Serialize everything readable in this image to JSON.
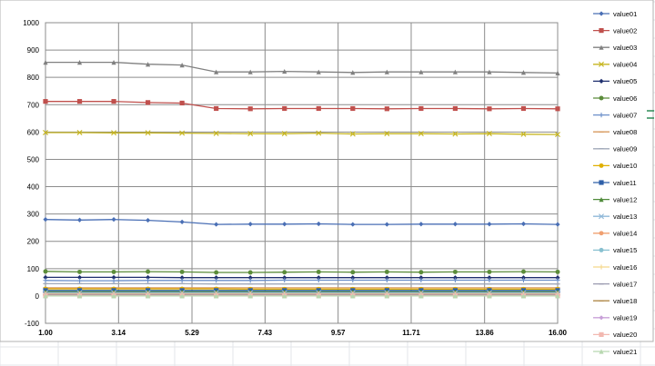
{
  "chart_data": {
    "type": "line",
    "title": "",
    "xlabel": "",
    "ylabel": "",
    "ylim": [
      -100,
      1000
    ],
    "yticks": [
      "-100",
      "0",
      "100",
      "200",
      "300",
      "400",
      "500",
      "600",
      "700",
      "800",
      "900",
      "1000"
    ],
    "xlim": [
      1.0,
      16.0
    ],
    "xticks": [
      "1.00",
      "3.14",
      "5.29",
      "7.43",
      "9.57",
      "11.71",
      "13.86",
      "16.00"
    ],
    "grid": true,
    "legend_position": "right",
    "x": [
      1,
      2,
      3,
      4,
      5,
      6,
      7,
      8,
      9,
      10,
      11,
      12,
      13,
      14,
      15,
      16
    ],
    "series": [
      {
        "name": "value01",
        "color": "#4a6fb5",
        "marker": "diamond",
        "values": [
          280,
          278,
          280,
          277,
          271,
          262,
          263,
          263,
          264,
          262,
          262,
          263,
          263,
          263,
          264,
          262
        ]
      },
      {
        "name": "value02",
        "color": "#c0504d",
        "marker": "square",
        "values": [
          712,
          712,
          712,
          708,
          706,
          686,
          685,
          686,
          686,
          686,
          685,
          686,
          686,
          685,
          686,
          685
        ]
      },
      {
        "name": "value03",
        "color": "#808080",
        "marker": "triangle",
        "values": [
          855,
          855,
          855,
          848,
          845,
          820,
          820,
          822,
          820,
          818,
          820,
          820,
          820,
          820,
          818,
          816
        ]
      },
      {
        "name": "value04",
        "color": "#c6b51f",
        "marker": "x",
        "values": [
          598,
          598,
          597,
          597,
          596,
          595,
          594,
          594,
          596,
          593,
          594,
          594,
          593,
          594,
          592,
          591
        ]
      },
      {
        "name": "value05",
        "color": "#1f2f6e",
        "marker": "diamond",
        "values": [
          68,
          68,
          68,
          68,
          67,
          67,
          67,
          67,
          67,
          67,
          67,
          67,
          67,
          67,
          67,
          67
        ]
      },
      {
        "name": "value06",
        "color": "#5b8c3a",
        "marker": "circle",
        "values": [
          90,
          88,
          88,
          89,
          88,
          86,
          86,
          87,
          88,
          87,
          88,
          87,
          88,
          88,
          89,
          88
        ]
      },
      {
        "name": "value07",
        "color": "#6b8fc9",
        "marker": "plus",
        "values": [
          57,
          56,
          56,
          57,
          57,
          57,
          57,
          58,
          58,
          58,
          58,
          58,
          58,
          58,
          58,
          58
        ]
      },
      {
        "name": "value08",
        "color": "#d79a5e",
        "marker": "dash",
        "values": [
          30,
          30,
          30,
          30,
          30,
          30,
          30,
          30,
          30,
          30,
          30,
          30,
          30,
          30,
          30,
          30
        ]
      },
      {
        "name": "value09",
        "color": "#a0a8b8",
        "marker": "dash",
        "values": [
          45,
          45,
          45,
          45,
          45,
          44,
          44,
          44,
          44,
          44,
          44,
          44,
          44,
          44,
          44,
          44
        ]
      },
      {
        "name": "value10",
        "color": "#e0b000",
        "marker": "circle",
        "values": [
          26,
          26,
          26,
          26,
          26,
          26,
          25,
          25,
          25,
          25,
          25,
          25,
          25,
          25,
          25,
          25
        ]
      },
      {
        "name": "value11",
        "color": "#2e5fa8",
        "marker": "square",
        "values": [
          20,
          20,
          20,
          20,
          20,
          20,
          20,
          20,
          20,
          20,
          20,
          20,
          20,
          20,
          20,
          20
        ]
      },
      {
        "name": "value12",
        "color": "#4f8a3a",
        "marker": "triangle",
        "values": [
          16,
          16,
          16,
          16,
          16,
          16,
          16,
          16,
          16,
          16,
          16,
          16,
          16,
          16,
          16,
          16
        ]
      },
      {
        "name": "value13",
        "color": "#8fb8d8",
        "marker": "x",
        "values": [
          12,
          12,
          12,
          12,
          12,
          12,
          12,
          12,
          12,
          12,
          12,
          12,
          12,
          12,
          12,
          12
        ]
      },
      {
        "name": "value14",
        "color": "#f0a070",
        "marker": "circle",
        "values": [
          8,
          8,
          8,
          8,
          8,
          8,
          8,
          8,
          8,
          8,
          8,
          8,
          8,
          8,
          8,
          8
        ]
      },
      {
        "name": "value15",
        "color": "#88c0d0",
        "marker": "circle",
        "values": [
          6,
          6,
          6,
          6,
          6,
          6,
          6,
          6,
          6,
          6,
          6,
          6,
          6,
          6,
          6,
          6
        ]
      },
      {
        "name": "value16",
        "color": "#f5d78a",
        "marker": "plus",
        "values": [
          5,
          5,
          5,
          5,
          5,
          5,
          5,
          5,
          5,
          5,
          5,
          5,
          5,
          5,
          5,
          5
        ]
      },
      {
        "name": "value17",
        "color": "#9b9bb0",
        "marker": "dash",
        "values": [
          4,
          4,
          4,
          4,
          4,
          4,
          4,
          4,
          4,
          4,
          4,
          4,
          4,
          4,
          4,
          4
        ]
      },
      {
        "name": "value18",
        "color": "#b08a4a",
        "marker": "dash",
        "values": [
          3,
          3,
          3,
          3,
          3,
          3,
          3,
          3,
          3,
          3,
          3,
          3,
          3,
          3,
          3,
          3
        ]
      },
      {
        "name": "value19",
        "color": "#c8a0d8",
        "marker": "diamond",
        "values": [
          2,
          2,
          2,
          2,
          2,
          2,
          2,
          2,
          2,
          2,
          2,
          2,
          2,
          2,
          2,
          2
        ]
      },
      {
        "name": "value20",
        "color": "#f2b8b0",
        "marker": "square",
        "values": [
          1,
          1,
          1,
          1,
          1,
          1,
          1,
          1,
          1,
          1,
          1,
          1,
          1,
          1,
          1,
          1
        ]
      },
      {
        "name": "value21",
        "color": "#b8d8b0",
        "marker": "triangle",
        "values": [
          0,
          0,
          0,
          0,
          0,
          0,
          0,
          0,
          0,
          0,
          0,
          0,
          0,
          0,
          0,
          0
        ]
      }
    ]
  }
}
